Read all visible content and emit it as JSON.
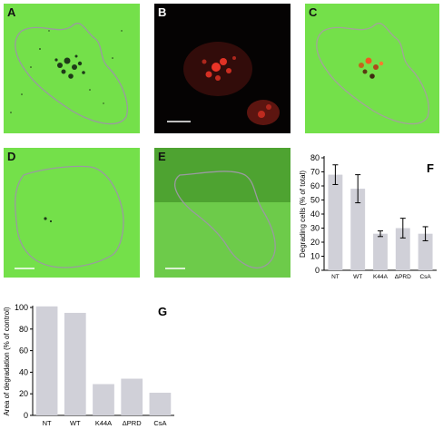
{
  "panels": [
    {
      "label": "A"
    },
    {
      "label": "B"
    },
    {
      "label": "C"
    },
    {
      "label": "D"
    },
    {
      "label": "E"
    }
  ],
  "colors": {
    "green_bg": "#74e04a",
    "red_signal": "#ff3a2a",
    "outline": "#9a9aa0",
    "bar": "#d0d0d8"
  },
  "chart_data": [
    {
      "panel_label": "F",
      "type": "bar",
      "categories": [
        "NT",
        "WT",
        "K44A",
        "ΔPRD",
        "CsA"
      ],
      "values": [
        68,
        58,
        26,
        30,
        26
      ],
      "errors": [
        7,
        10,
        2,
        7,
        5
      ],
      "ylabel": "Degrading cells (% of total)",
      "ylim": [
        0,
        80
      ],
      "yticks": [
        0,
        10,
        20,
        30,
        40,
        50,
        60,
        70,
        80
      ],
      "grid": false
    },
    {
      "panel_label": "G",
      "type": "bar",
      "categories": [
        "NT",
        "WT",
        "K44A",
        "ΔPRD",
        "CsA"
      ],
      "values": [
        101,
        95,
        29,
        34,
        21
      ],
      "ylabel": "Area of degradation (% of control)",
      "ylim": [
        0,
        100
      ],
      "yticks": [
        0,
        20,
        40,
        60,
        80,
        100
      ],
      "grid": false
    }
  ]
}
